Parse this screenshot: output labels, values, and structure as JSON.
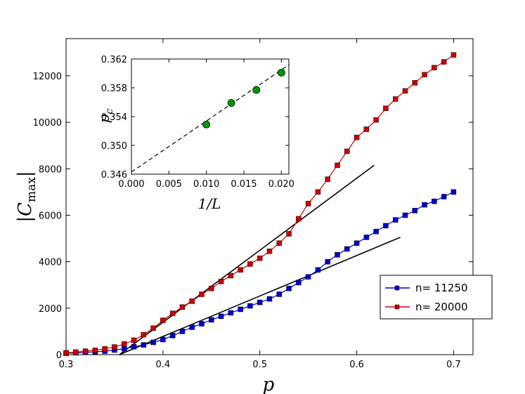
{
  "chart_data": {
    "type": "line",
    "main": {
      "xlabel": "p",
      "ylabel_prefix": "|",
      "ylabel_symbol": "C",
      "ylabel_subscript": "max",
      "ylabel_suffix": "|",
      "xlim": [
        0.3,
        0.72
      ],
      "ylim": [
        0,
        13600
      ],
      "xticks": [
        0.3,
        0.4,
        0.5,
        0.6,
        0.7
      ],
      "xtick_labels": [
        "0.3",
        "0.4",
        "0.5",
        "0.6",
        "0.7"
      ],
      "yticks": [
        0,
        2000,
        4000,
        6000,
        8000,
        10000,
        12000
      ],
      "ytick_labels": [
        "0",
        "2000",
        "4000",
        "6000",
        "8000",
        "10000",
        "12000"
      ],
      "series": [
        {
          "name": "n= 11250",
          "color": "#0000cc",
          "marker": "square",
          "x": [
            0.3,
            0.31,
            0.32,
            0.33,
            0.34,
            0.35,
            0.36,
            0.37,
            0.38,
            0.39,
            0.4,
            0.41,
            0.42,
            0.43,
            0.44,
            0.45,
            0.46,
            0.47,
            0.48,
            0.49,
            0.5,
            0.51,
            0.52,
            0.53,
            0.54,
            0.55,
            0.56,
            0.57,
            0.58,
            0.59,
            0.6,
            0.61,
            0.62,
            0.63,
            0.64,
            0.65,
            0.66,
            0.67,
            0.68,
            0.69,
            0.7
          ],
          "y": [
            60,
            80,
            100,
            120,
            150,
            200,
            260,
            340,
            420,
            530,
            650,
            820,
            1000,
            1180,
            1330,
            1500,
            1650,
            1800,
            1950,
            2100,
            2250,
            2400,
            2600,
            2850,
            3100,
            3350,
            3650,
            4000,
            4300,
            4550,
            4800,
            5050,
            5300,
            5550,
            5800,
            6000,
            6200,
            6450,
            6600,
            6800,
            7000
          ]
        },
        {
          "name": "n= 20000",
          "color": "#cc0000",
          "marker": "square",
          "x": [
            0.3,
            0.31,
            0.32,
            0.33,
            0.34,
            0.35,
            0.36,
            0.37,
            0.38,
            0.39,
            0.4,
            0.41,
            0.42,
            0.43,
            0.44,
            0.45,
            0.46,
            0.47,
            0.48,
            0.49,
            0.5,
            0.51,
            0.52,
            0.53,
            0.54,
            0.55,
            0.56,
            0.57,
            0.58,
            0.59,
            0.6,
            0.61,
            0.62,
            0.63,
            0.64,
            0.65,
            0.66,
            0.67,
            0.68,
            0.69,
            0.7
          ],
          "y": [
            80,
            110,
            150,
            190,
            250,
            330,
            460,
            620,
            860,
            1140,
            1480,
            1780,
            2050,
            2300,
            2600,
            2850,
            3150,
            3400,
            3650,
            3900,
            4150,
            4450,
            4800,
            5200,
            5850,
            6500,
            7000,
            7550,
            8150,
            8750,
            9350,
            9700,
            10100,
            10600,
            11000,
            11350,
            11700,
            12050,
            12350,
            12600,
            12900
          ]
        }
      ],
      "fit_lines": [
        {
          "x": [
            0.355,
            0.618
          ],
          "y": [
            0,
            8150
          ]
        },
        {
          "x": [
            0.355,
            0.645
          ],
          "y": [
            0,
            5050
          ]
        }
      ],
      "legend_position": "lower-right"
    },
    "inset": {
      "type": "scatter",
      "xlabel": "1/L",
      "ylabel": "p",
      "ylabel_subscript": "c",
      "xlim": [
        0.0,
        0.021
      ],
      "ylim": [
        0.346,
        0.362
      ],
      "xticks": [
        0.0,
        0.005,
        0.01,
        0.015,
        0.02
      ],
      "xtick_labels": [
        "0.000",
        "0.005",
        "0.010",
        "0.015",
        "0.020"
      ],
      "yticks": [
        0.346,
        0.35,
        0.354,
        0.358,
        0.362
      ],
      "ytick_labels": [
        "0.346",
        "0.350",
        "0.354",
        "0.358",
        "0.362"
      ],
      "points": {
        "x": [
          0.01,
          0.01333,
          0.01667,
          0.02
        ],
        "y": [
          0.3529,
          0.3559,
          0.3577,
          0.3601
        ]
      },
      "point_color": "#009900",
      "fit_line": {
        "x": [
          0.0,
          0.021
        ],
        "y": [
          0.3463,
          0.3612
        ]
      }
    }
  }
}
